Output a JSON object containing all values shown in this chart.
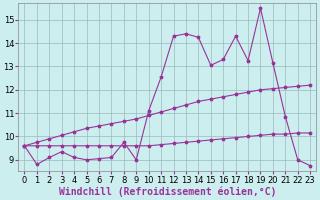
{
  "xlabel": "Windchill (Refroidissement éolien,°C)",
  "bg_color": "#bbeebb",
  "plot_bg_color": "#cceeee",
  "line_color": "#993399",
  "grid_color": "#99bbbb",
  "xlim": [
    -0.5,
    23.5
  ],
  "ylim": [
    8.5,
    15.7
  ],
  "yticks": [
    9,
    10,
    11,
    12,
    13,
    14,
    15
  ],
  "xticks": [
    0,
    1,
    2,
    3,
    4,
    5,
    6,
    7,
    8,
    9,
    10,
    11,
    12,
    13,
    14,
    15,
    16,
    17,
    18,
    19,
    20,
    21,
    22,
    23
  ],
  "line_upper_x": [
    0,
    1,
    2,
    3,
    4,
    5,
    6,
    7,
    8,
    9,
    10,
    11,
    12,
    13,
    14,
    15,
    16,
    17,
    18,
    19,
    20,
    21,
    22,
    23
  ],
  "line_upper_y": [
    9.6,
    9.75,
    9.9,
    10.05,
    10.2,
    10.35,
    10.45,
    10.55,
    10.65,
    10.75,
    10.9,
    11.05,
    11.2,
    11.35,
    11.5,
    11.6,
    11.7,
    11.8,
    11.9,
    12.0,
    12.05,
    12.1,
    12.15,
    12.2
  ],
  "line_lower_x": [
    0,
    1,
    2,
    3,
    4,
    5,
    6,
    7,
    8,
    9,
    10,
    11,
    12,
    13,
    14,
    15,
    16,
    17,
    18,
    19,
    20,
    21,
    22,
    23
  ],
  "line_lower_y": [
    9.6,
    9.6,
    9.6,
    9.6,
    9.6,
    9.6,
    9.6,
    9.6,
    9.6,
    9.6,
    9.6,
    9.65,
    9.7,
    9.75,
    9.8,
    9.85,
    9.9,
    9.95,
    10.0,
    10.05,
    10.1,
    10.1,
    10.15,
    10.15
  ],
  "line_data_x": [
    0,
    1,
    2,
    3,
    4,
    5,
    6,
    7,
    8,
    9,
    10,
    11,
    12,
    13,
    14,
    15,
    16,
    17,
    18,
    19,
    20,
    21,
    22,
    23
  ],
  "line_data_y": [
    9.6,
    8.8,
    9.1,
    9.35,
    9.1,
    9.0,
    9.05,
    9.1,
    9.75,
    9.0,
    11.1,
    12.55,
    14.3,
    14.4,
    14.25,
    13.05,
    13.3,
    14.3,
    13.25,
    15.5,
    13.15,
    10.85,
    9.0,
    8.75
  ],
  "tick_fontsize": 6,
  "xlabel_fontsize": 7
}
